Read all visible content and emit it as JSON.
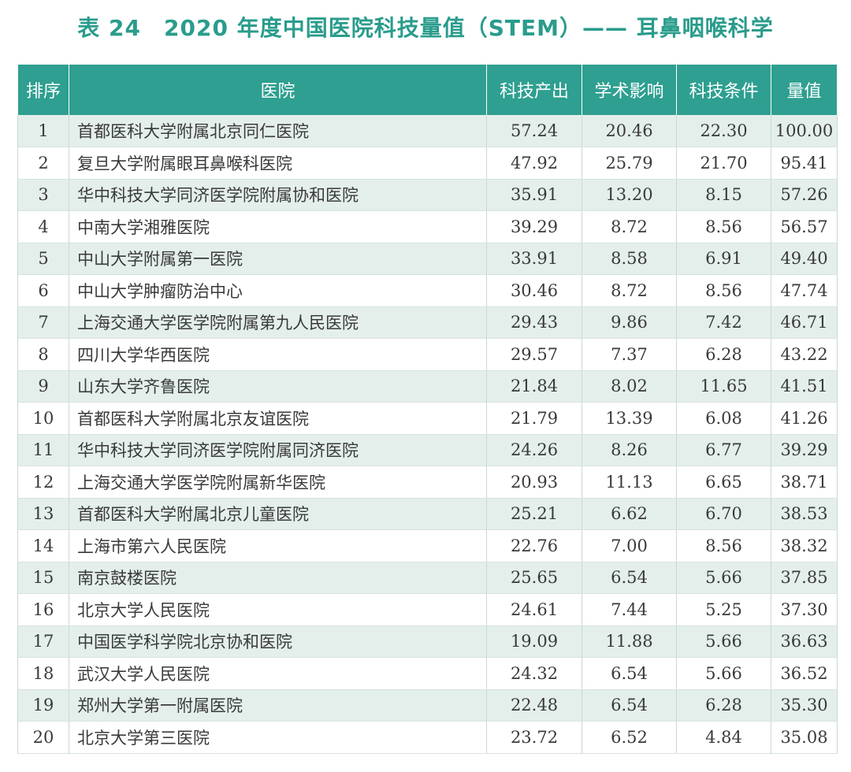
{
  "title": "表 24　2020 年度中国医院科技量值（STEM）—— 耳鼻咽喉科学",
  "table": {
    "headers": [
      "排序",
      "医院",
      "科技产出",
      "学术影响",
      "科技条件",
      "量值"
    ],
    "rows": [
      [
        "1",
        "首都医科大学附属北京同仁医院",
        "57.24",
        "20.46",
        "22.30",
        "100.00"
      ],
      [
        "2",
        "复旦大学附属眼耳鼻喉科医院",
        "47.92",
        "25.79",
        "21.70",
        "95.41"
      ],
      [
        "3",
        "华中科技大学同济医学院附属协和医院",
        "35.91",
        "13.20",
        "8.15",
        "57.26"
      ],
      [
        "4",
        "中南大学湘雅医院",
        "39.29",
        "8.72",
        "8.56",
        "56.57"
      ],
      [
        "5",
        "中山大学附属第一医院",
        "33.91",
        "8.58",
        "6.91",
        "49.40"
      ],
      [
        "6",
        "中山大学肿瘤防治中心",
        "30.46",
        "8.72",
        "8.56",
        "47.74"
      ],
      [
        "7",
        "上海交通大学医学院附属第九人民医院",
        "29.43",
        "9.86",
        "7.42",
        "46.71"
      ],
      [
        "8",
        "四川大学华西医院",
        "29.57",
        "7.37",
        "6.28",
        "43.22"
      ],
      [
        "9",
        "山东大学齐鲁医院",
        "21.84",
        "8.02",
        "11.65",
        "41.51"
      ],
      [
        "10",
        "首都医科大学附属北京友谊医院",
        "21.79",
        "13.39",
        "6.08",
        "41.26"
      ],
      [
        "11",
        "华中科技大学同济医学院附属同济医院",
        "24.26",
        "8.26",
        "6.77",
        "39.29"
      ],
      [
        "12",
        "上海交通大学医学院附属新华医院",
        "20.93",
        "11.13",
        "6.65",
        "38.71"
      ],
      [
        "13",
        "首都医科大学附属北京儿童医院",
        "25.21",
        "6.62",
        "6.70",
        "38.53"
      ],
      [
        "14",
        "上海市第六人民医院",
        "22.76",
        "7.00",
        "8.56",
        "38.32"
      ],
      [
        "15",
        "南京鼓楼医院",
        "25.65",
        "6.54",
        "5.66",
        "37.85"
      ],
      [
        "16",
        "北京大学人民医院",
        "24.61",
        "7.44",
        "5.25",
        "37.30"
      ],
      [
        "17",
        "中国医学科学院北京协和医院",
        "19.09",
        "11.88",
        "5.66",
        "36.63"
      ],
      [
        "18",
        "武汉大学人民医院",
        "24.32",
        "6.54",
        "5.66",
        "36.52"
      ],
      [
        "19",
        "郑州大学第一附属医院",
        "22.48",
        "6.54",
        "6.28",
        "35.30"
      ],
      [
        "20",
        "北京大学第三医院",
        "23.72",
        "6.52",
        "4.84",
        "35.08"
      ]
    ]
  },
  "colors": {
    "title": "#2a9c8c",
    "header_bg": "#2e9f90",
    "stripe": "#e4efec"
  }
}
